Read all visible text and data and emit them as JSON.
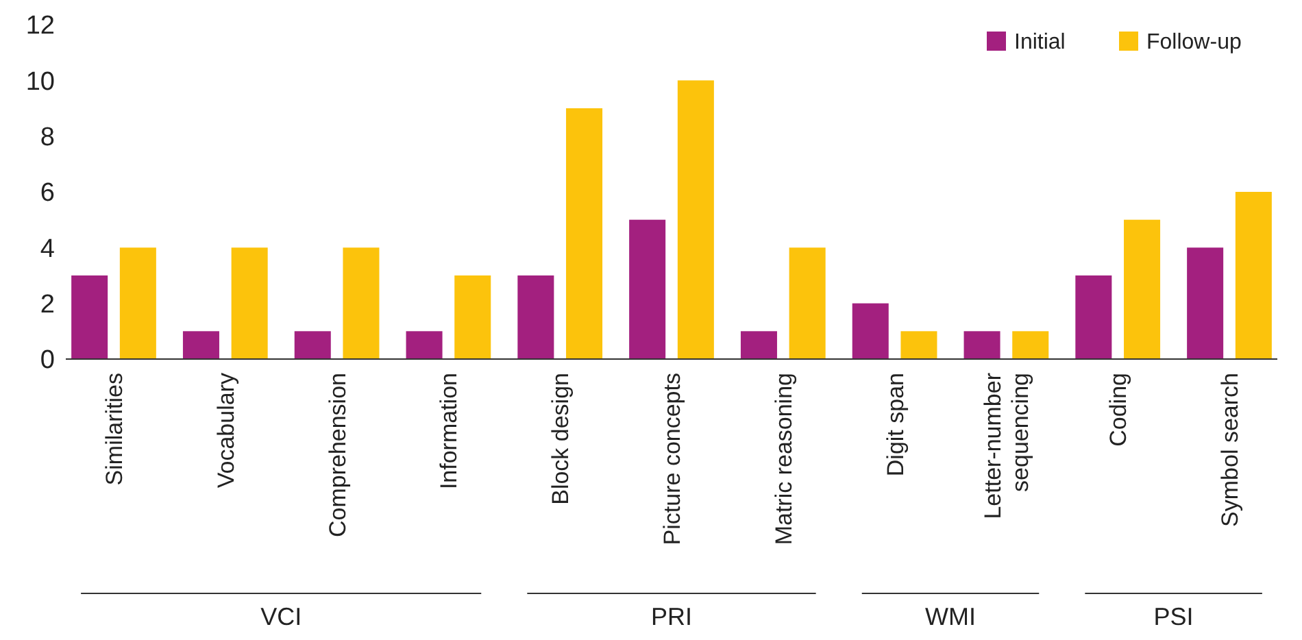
{
  "chart_data": {
    "type": "bar",
    "categories": [
      "Similarities",
      "Vocabulary",
      "Comprehension",
      "Information",
      "Block design",
      "Picture concepts",
      "Matric reasoning",
      "Digit span",
      "Letter-number sequencing",
      "Coding",
      "Symbol search"
    ],
    "series": [
      {
        "name": "Initial",
        "color": "#a3207f",
        "values": [
          3,
          1,
          1,
          1,
          3,
          5,
          1,
          2,
          1,
          3,
          4
        ]
      },
      {
        "name": "Follow-up",
        "color": "#fcc30c",
        "values": [
          4,
          4,
          4,
          3,
          9,
          10,
          4,
          1,
          1,
          5,
          6
        ]
      }
    ],
    "ylim": [
      0,
      12
    ],
    "yticks": [
      0,
      2,
      4,
      6,
      8,
      10,
      12
    ],
    "grid": false,
    "legend": "top right",
    "annotations": [
      "VCI",
      "PRI",
      "WMI",
      "PSI"
    ]
  }
}
